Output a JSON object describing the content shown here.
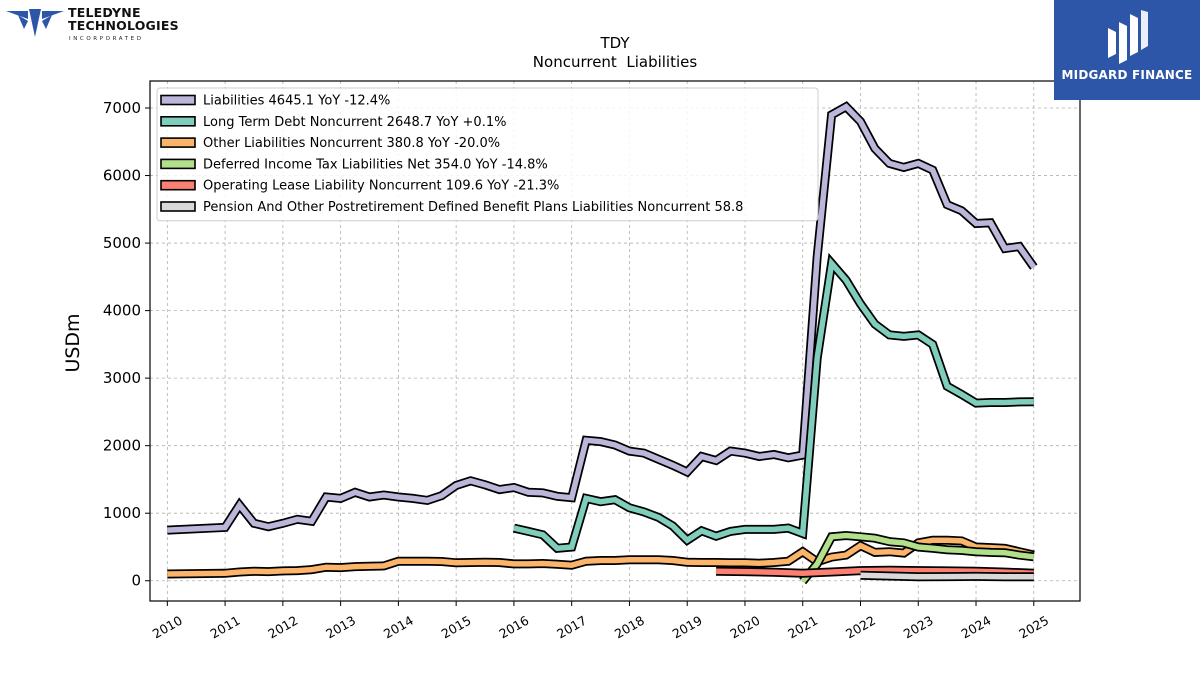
{
  "company_logo": {
    "name_line1": "TELEDYNE",
    "name_line2": "TECHNOLOGIES",
    "tagline": "INCORPORATED",
    "color": "#2d55a8"
  },
  "brand": {
    "text": "MIDGARD FINANCE",
    "background": "#2d55a8",
    "icon": "midgard-mark-icon"
  },
  "chart_data": {
    "type": "line",
    "title": "TDY",
    "subtitle": "Noncurrent  Liabilities",
    "ylabel": "USDm",
    "xlabel": "",
    "xlim": [
      2009.7,
      2025.8
    ],
    "ylim": [
      -300,
      7400
    ],
    "y_ticks": [
      0,
      1000,
      2000,
      3000,
      4000,
      5000,
      6000,
      7000
    ],
    "x_ticks": [
      2010,
      2011,
      2012,
      2013,
      2014,
      2015,
      2016,
      2017,
      2018,
      2019,
      2020,
      2021,
      2022,
      2023,
      2024,
      2025
    ],
    "x_tick_labels": [
      "2010",
      "2011",
      "2012",
      "2013",
      "2014",
      "2015",
      "2016",
      "2017",
      "2018",
      "2019",
      "2020",
      "2021",
      "2022",
      "2023",
      "2024",
      "2025"
    ],
    "grid": true,
    "legend_position": "top-left",
    "series": [
      {
        "name": "Liabilities",
        "legend": "Liabilities  4645.1 YoY -12.4%",
        "color": "#bcb7da",
        "x": [
          2010.0,
          2011.0,
          2011.25,
          2011.5,
          2011.75,
          2012.0,
          2012.25,
          2012.5,
          2012.75,
          2013.0,
          2013.25,
          2013.5,
          2013.75,
          2014.0,
          2014.25,
          2014.5,
          2014.75,
          2015.0,
          2015.25,
          2015.5,
          2015.75,
          2016.0,
          2016.25,
          2016.5,
          2016.75,
          2017.0,
          2017.25,
          2017.5,
          2017.75,
          2018.0,
          2018.25,
          2018.5,
          2018.75,
          2019.0,
          2019.25,
          2019.5,
          2019.75,
          2020.0,
          2020.25,
          2020.5,
          2020.75,
          2021.0,
          2021.25,
          2021.5,
          2021.75,
          2022.0,
          2022.25,
          2022.5,
          2022.75,
          2023.0,
          2023.25,
          2023.5,
          2023.75,
          2024.0,
          2024.25,
          2024.5,
          2024.75,
          2025.0
        ],
        "values": [
          750,
          790,
          1120,
          850,
          800,
          850,
          910,
          880,
          1240,
          1220,
          1310,
          1240,
          1270,
          1240,
          1220,
          1190,
          1260,
          1410,
          1480,
          1420,
          1350,
          1380,
          1310,
          1300,
          1250,
          1230,
          2080,
          2060,
          2010,
          1920,
          1890,
          1800,
          1710,
          1610,
          1840,
          1780,
          1920,
          1890,
          1840,
          1870,
          1820,
          1860,
          4800,
          6900,
          7020,
          6800,
          6400,
          6180,
          6120,
          6180,
          6080,
          5570,
          5480,
          5290,
          5300,
          4920,
          4950,
          4645
        ]
      },
      {
        "name": "Long Term Debt Noncurrent",
        "legend": "Long Term Debt Noncurrent  2648.7 YoY +0.1%",
        "color": "#7fcdbb",
        "x": [
          2016.0,
          2016.25,
          2016.5,
          2016.75,
          2017.0,
          2017.25,
          2017.5,
          2017.75,
          2018.0,
          2018.25,
          2018.5,
          2018.75,
          2019.0,
          2019.25,
          2019.5,
          2019.75,
          2020.0,
          2020.25,
          2020.5,
          2020.75,
          2021.0,
          2021.25,
          2021.5,
          2021.75,
          2022.0,
          2022.25,
          2022.5,
          2022.75,
          2023.0,
          2023.25,
          2023.5,
          2023.75,
          2024.0,
          2024.25,
          2024.5,
          2024.75,
          2025.0
        ],
        "values": [
          780,
          730,
          680,
          480,
          500,
          1220,
          1170,
          1200,
          1080,
          1020,
          940,
          810,
          600,
          740,
          660,
          730,
          760,
          760,
          760,
          780,
          700,
          3300,
          4700,
          4450,
          4100,
          3800,
          3640,
          3620,
          3640,
          3500,
          2880,
          2760,
          2630,
          2640,
          2640,
          2648,
          2649
        ]
      },
      {
        "name": "Other Liabilities Noncurrent",
        "legend": "Other Liabilities Noncurrent  380.8 YoY -20.0%",
        "color": "#fbb469",
        "x": [
          2010.0,
          2011.0,
          2011.25,
          2011.5,
          2011.75,
          2012.0,
          2012.25,
          2012.5,
          2012.75,
          2013.0,
          2013.25,
          2013.5,
          2013.75,
          2014.0,
          2014.25,
          2014.5,
          2014.75,
          2015.0,
          2015.25,
          2015.5,
          2015.75,
          2016.0,
          2016.25,
          2016.5,
          2016.75,
          2017.0,
          2017.25,
          2017.5,
          2017.75,
          2018.0,
          2018.25,
          2018.5,
          2018.75,
          2019.0,
          2019.25,
          2019.5,
          2019.75,
          2020.0,
          2020.25,
          2020.5,
          2020.75,
          2021.0,
          2021.25,
          2021.5,
          2021.75,
          2022.0,
          2022.25,
          2022.5,
          2022.75,
          2023.0,
          2023.25,
          2023.5,
          2023.75,
          2024.0,
          2024.25,
          2024.5,
          2024.75,
          2025.0
        ],
        "values": [
          100,
          110,
          130,
          140,
          135,
          145,
          150,
          165,
          200,
          195,
          210,
          215,
          220,
          290,
          290,
          290,
          285,
          265,
          270,
          275,
          270,
          250,
          250,
          255,
          245,
          230,
          290,
          300,
          300,
          310,
          310,
          310,
          300,
          275,
          270,
          270,
          265,
          265,
          260,
          270,
          290,
          430,
          280,
          350,
          380,
          520,
          420,
          430,
          410,
          560,
          600,
          600,
          590,
          500,
          490,
          480,
          430,
          381
        ]
      },
      {
        "name": "Deferred Income Tax Liabilities Net",
        "legend": "Deferred Income Tax Liabilities Net  354.0 YoY -14.8%",
        "color": "#b2df8a",
        "x": [
          2021.0,
          2021.25,
          2021.5,
          2021.75,
          2022.0,
          2022.25,
          2022.5,
          2022.75,
          2023.0,
          2023.25,
          2023.5,
          2023.75,
          2024.0,
          2024.25,
          2024.5,
          2024.75,
          2025.0
        ],
        "values": [
          -10,
          250,
          650,
          670,
          650,
          630,
          580,
          560,
          500,
          480,
          460,
          450,
          430,
          420,
          415,
          380,
          354
        ]
      },
      {
        "name": "Operating Lease Liability Noncurrent",
        "legend": "Operating Lease Liability Noncurrent  109.6 YoY -21.3%",
        "color": "#fb8072",
        "x": [
          2019.5,
          2020.0,
          2020.5,
          2021.0,
          2021.5,
          2022.0,
          2022.5,
          2023.0,
          2023.5,
          2024.0,
          2024.5,
          2025.0
        ],
        "values": [
          140,
          135,
          125,
          110,
          130,
          150,
          155,
          150,
          145,
          140,
          128,
          110
        ]
      },
      {
        "name": "Pension And Other Postretirement Defined Benefit Plans Liabilities Noncurrent",
        "legend": "Pension And Other Postretirement Defined Benefit Plans Liabilities Noncurrent  58.8",
        "color": "#d9d9d9",
        "x": [
          2022.0,
          2022.5,
          2023.0,
          2023.5,
          2024.0,
          2024.5,
          2025.0
        ],
        "values": [
          80,
          70,
          60,
          62,
          65,
          60,
          59
        ]
      }
    ]
  }
}
